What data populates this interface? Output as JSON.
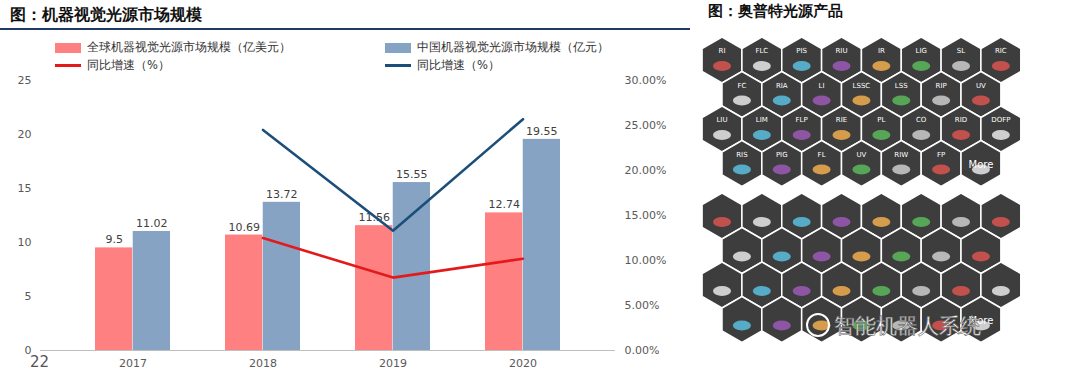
{
  "chart_data": {
    "type": "bar",
    "title": "图：机器视觉光源市场规模",
    "categories": [
      "2017",
      "2018",
      "2019",
      "2020"
    ],
    "series": [
      {
        "name": "全球机器视觉光源市场规模（亿美元）",
        "type": "bar",
        "color": "#FF8080",
        "data_labels": true,
        "values": [
          9.5,
          10.69,
          11.56,
          12.74
        ]
      },
      {
        "name": "中国机器视觉光源市场规模（亿元）",
        "type": "bar",
        "color": "#86A3C3",
        "data_labels": true,
        "values": [
          11.02,
          13.72,
          15.55,
          19.55
        ]
      },
      {
        "name": "同比增速（%）",
        "type": "line",
        "axis": "y2",
        "color": "#E31A1C",
        "values": [
          null,
          12.5,
          8.1,
          10.2
        ]
      },
      {
        "name": "同比增速（%）",
        "type": "line",
        "axis": "y2",
        "color": "#1B4F7A",
        "values": [
          null,
          24.5,
          13.3,
          25.7
        ]
      }
    ],
    "ylim": [
      0,
      25
    ],
    "yticks": [
      0,
      5,
      10,
      15,
      20,
      25
    ],
    "y2lim": [
      0,
      30
    ],
    "y2ticks": [
      {
        "value": 0,
        "label": "0.00%"
      },
      {
        "value": 5,
        "label": "5.00%"
      },
      {
        "value": 10,
        "label": "10.00%"
      },
      {
        "value": 15,
        "label": "15.00%"
      },
      {
        "value": 20,
        "label": "20.00%"
      },
      {
        "value": 25,
        "label": "25.00%"
      },
      {
        "value": 30,
        "label": "30.00%"
      }
    ],
    "grid": false,
    "legend": "top"
  },
  "page_number": "22",
  "watermark": "智能机器人系统",
  "product_panel": {
    "title": "图：奥普特光源产品",
    "first_group_labels": [
      "RI",
      "FLC",
      "PIS",
      "RIU",
      "IR",
      "LIG",
      "SL",
      "RIC",
      "FC",
      "RIA",
      "LI",
      "LSSC",
      "LSS",
      "RIP",
      "UV",
      "LIU",
      "LIM",
      "FLP",
      "RIE",
      "PL",
      "CO",
      "RID",
      "DOFP",
      "RIS",
      "PIG",
      "FL",
      "UV",
      "RIW",
      "FP",
      "More"
    ],
    "second_group_labels": [
      "More"
    ]
  }
}
